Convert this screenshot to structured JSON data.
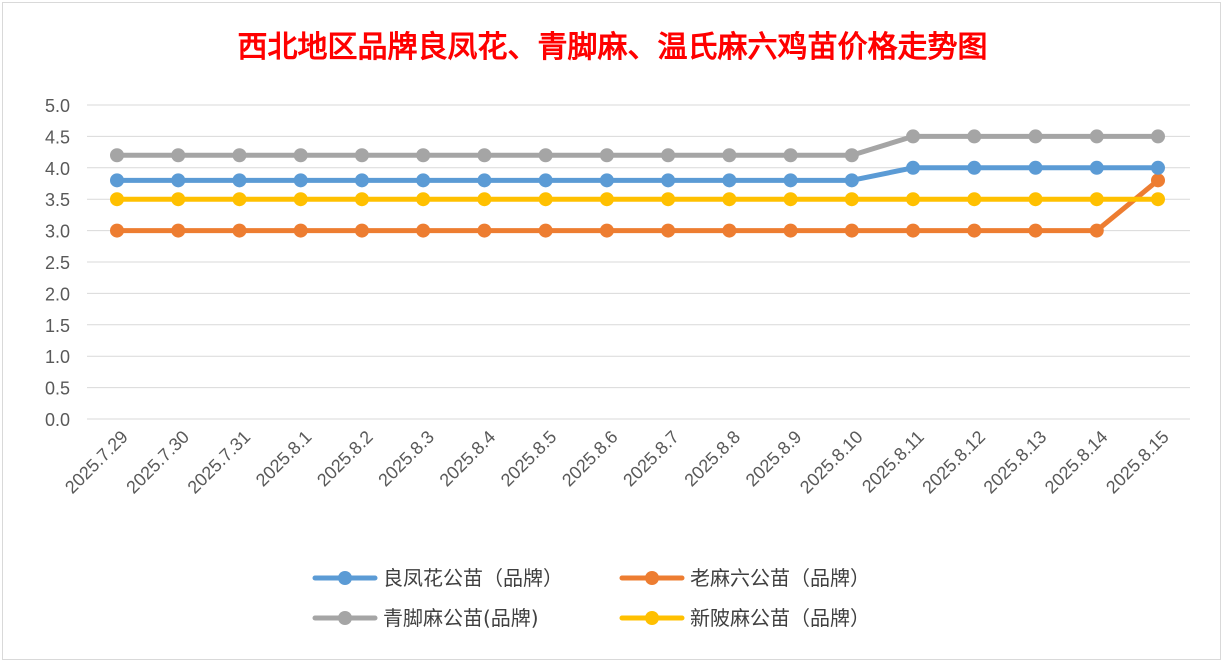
{
  "chart_data": {
    "type": "line",
    "title": "西北地区品牌良凤花、青脚麻、温氏麻六鸡苗价格走势图",
    "title_color": "#ff0000",
    "categories": [
      "2025.7.29",
      "2025.7.30",
      "2025.7.31",
      "2025.8.1",
      "2025.8.2",
      "2025.8.3",
      "2025.8.4",
      "2025.8.5",
      "2025.8.6",
      "2025.8.7",
      "2025.8.8",
      "2025.8.9",
      "2025.8.10",
      "2025.8.11",
      "2025.8.12",
      "2025.8.13",
      "2025.8.14",
      "2025.8.15"
    ],
    "ylim": [
      0,
      5
    ],
    "y_ticks": [
      "0.0",
      "0.5",
      "1.0",
      "1.5",
      "2.0",
      "2.5",
      "3.0",
      "3.5",
      "4.0",
      "4.5",
      "5.0"
    ],
    "grid": true,
    "legend_position": "bottom",
    "series": [
      {
        "name": "良凤花公苗（品牌）",
        "color": "#5b9bd5",
        "values": [
          3.8,
          3.8,
          3.8,
          3.8,
          3.8,
          3.8,
          3.8,
          3.8,
          3.8,
          3.8,
          3.8,
          3.8,
          3.8,
          4.0,
          4.0,
          4.0,
          4.0,
          4.0
        ]
      },
      {
        "name": "老麻六公苗（品牌）",
        "color": "#ed7d31",
        "values": [
          3.0,
          3.0,
          3.0,
          3.0,
          3.0,
          3.0,
          3.0,
          3.0,
          3.0,
          3.0,
          3.0,
          3.0,
          3.0,
          3.0,
          3.0,
          3.0,
          3.0,
          3.8
        ]
      },
      {
        "name": "青脚麻公苗(品牌)",
        "color": "#a5a5a5",
        "values": [
          4.2,
          4.2,
          4.2,
          4.2,
          4.2,
          4.2,
          4.2,
          4.2,
          4.2,
          4.2,
          4.2,
          4.2,
          4.2,
          4.5,
          4.5,
          4.5,
          4.5,
          4.5
        ]
      },
      {
        "name": "新陂麻公苗（品牌）",
        "color": "#ffc000",
        "values": [
          3.5,
          3.5,
          3.5,
          3.5,
          3.5,
          3.5,
          3.5,
          3.5,
          3.5,
          3.5,
          3.5,
          3.5,
          3.5,
          3.5,
          3.5,
          3.5,
          3.5,
          3.5
        ]
      }
    ],
    "series_draw_order": [
      1,
      3,
      0,
      2
    ]
  }
}
